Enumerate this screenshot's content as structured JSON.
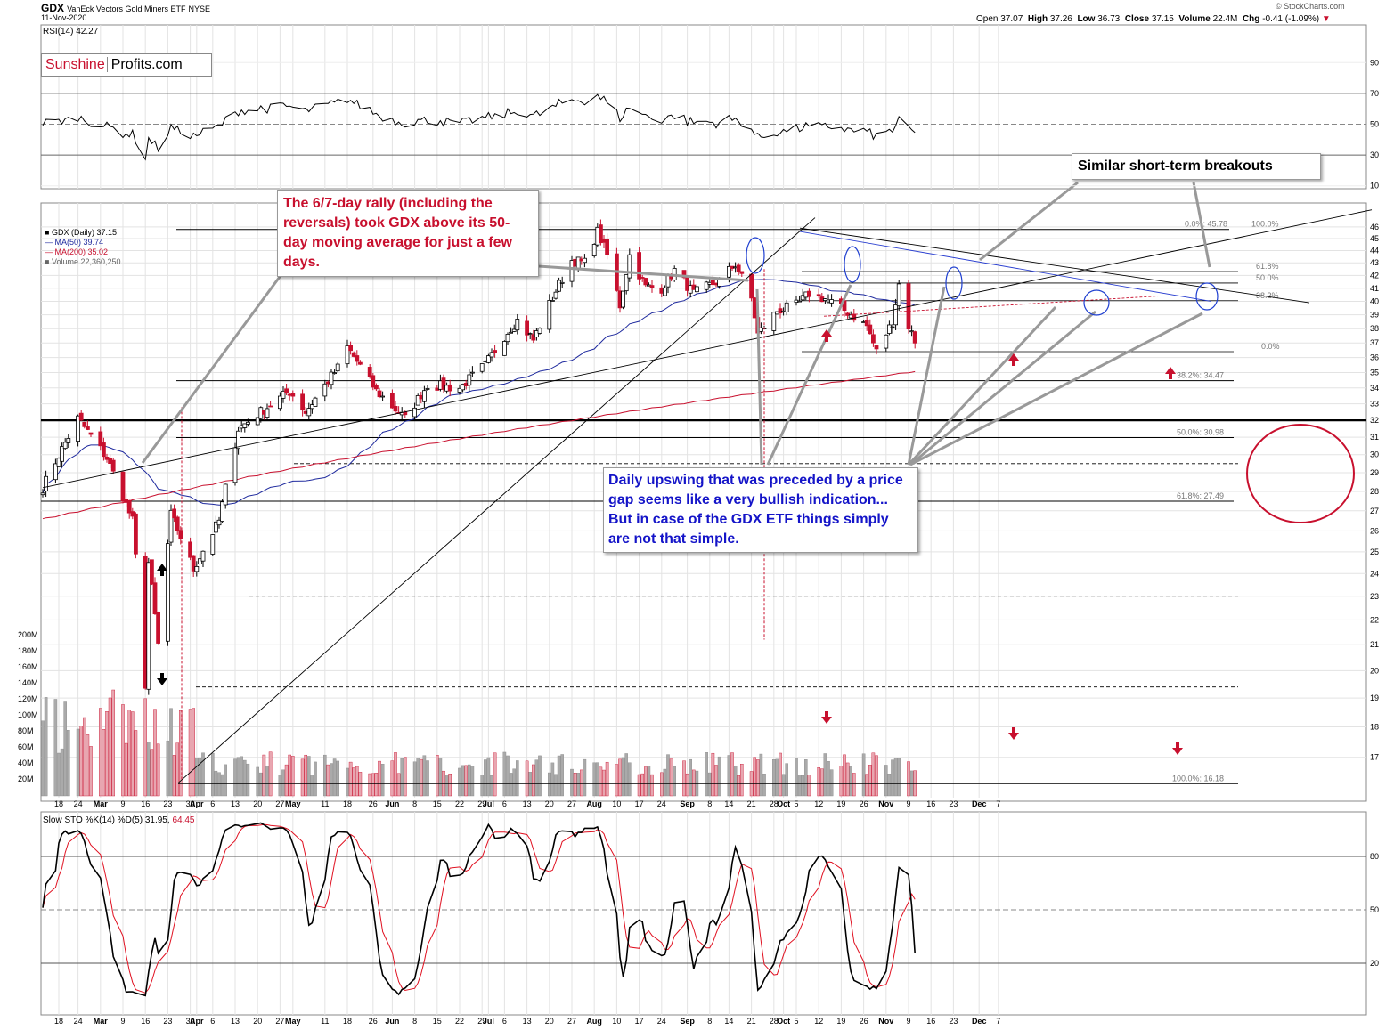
{
  "header": {
    "symbol": "GDX",
    "name": "VanEck Vectors Gold Miners ETF",
    "exchange": "NYSE",
    "date": "11-Nov-2020",
    "watermark": "© StockCharts.com",
    "open_label": "Open",
    "open": "37.07",
    "high_label": "High",
    "high": "37.26",
    "low_label": "Low",
    "low": "36.73",
    "close_label": "Close",
    "close": "37.15",
    "volume_label": "Volume",
    "volume": "22.4M",
    "chg_label": "Chg",
    "chg": "-0.41 (-1.09%)"
  },
  "logo": {
    "part1": "Sunshine",
    "part2": "Profits.com"
  },
  "rsi_legend": "RSI(14) 42.27",
  "price_legend": {
    "gdx": "GDX (Daily) 37.15",
    "ma50": "MA(50) 39.74",
    "ma200": "MA(200) 35.02",
    "volume": "Volume 22,360,250"
  },
  "sto_legend": {
    "label": "Slow STO %K(14) %D(5) 31.95,",
    "d_value": "64.45"
  },
  "annotations": {
    "rally": "The 6/7-day rally (including the reversals) took GDX above its 50-day moving average for just a few days.",
    "breakouts": "Similar short-term breakouts",
    "upswing": "Daily upswing that was preceded by a price gap seems like a very bullish indication... But in case of the GDX ETF things simply are not that simple."
  },
  "colors": {
    "up": "#000000",
    "down": "#c8102e",
    "ma50": "#1f2a9e",
    "ma200": "#c8102e",
    "accent": "#c8102e",
    "note_blue": "#1414c8"
  },
  "icons": [
    "up-arrow-icon",
    "down-arrow-icon",
    "target-circle-icon",
    "breakout-ellipse-icon"
  ],
  "fib_labels": [
    {
      "text": "0.0%: 45.78"
    },
    {
      "text": "100.0%"
    },
    {
      "text": "61.8%"
    },
    {
      "text": "50.0%"
    },
    {
      "text": "38.2%"
    },
    {
      "text": "0.0%"
    },
    {
      "text": "38.2%: 34.47"
    },
    {
      "text": "50.0%: 30.98"
    },
    {
      "text": "61.8%: 27.49"
    },
    {
      "text": "100.0%: 16.18"
    }
  ],
  "chart_data": {
    "type": "candlestick",
    "x_ticks": [
      "18",
      "24",
      "Mar",
      "9",
      "16",
      "23",
      "30",
      "Apr",
      "6",
      "13",
      "20",
      "27",
      "May",
      "11",
      "18",
      "26",
      "Jun",
      "8",
      "15",
      "22",
      "29",
      "Jul",
      "6",
      "13",
      "20",
      "27",
      "Aug",
      "10",
      "17",
      "24",
      "Sep",
      "8",
      "14",
      "21",
      "28",
      "Oct",
      "5",
      "12",
      "19",
      "26",
      "Nov",
      "9",
      "16",
      "23",
      "Dec",
      "7"
    ],
    "price_axis": [
      "46",
      "45",
      "44",
      "43",
      "42",
      "41",
      "40",
      "39",
      "38",
      "37",
      "36",
      "35",
      "34",
      "33",
      "32",
      "31",
      "30",
      "29",
      "28",
      "27",
      "26",
      "25",
      "24",
      "23",
      "22",
      "21",
      "20",
      "19",
      "18",
      "17"
    ],
    "price_range": [
      16,
      47
    ],
    "price_scale": "log",
    "volume_axis": [
      "200M",
      "180M",
      "160M",
      "140M",
      "120M",
      "100M",
      "80M",
      "60M",
      "40M",
      "20M"
    ],
    "rsi_axis": [
      "90",
      "70",
      "50",
      "30",
      "10"
    ],
    "sto_axis": [
      "80",
      "50",
      "20"
    ],
    "key_levels": {
      "fib_high": 45.78,
      "fib_low": 16.18,
      "fib_382": 34.47,
      "fib_500": 30.98,
      "fib_618": 27.49,
      "support_32": 32.0
    },
    "anchors": [
      {
        "date": "Feb 13",
        "price": 28.2
      },
      {
        "date": "Feb 24",
        "price": 32.1
      },
      {
        "date": "Mar 4",
        "price": 29.8
      },
      {
        "date": "Mar 12",
        "price": 26.5
      },
      {
        "date": "Mar 16",
        "price": 19.5
      },
      {
        "date": "Mar 17",
        "price": 24.5
      },
      {
        "date": "Mar 20",
        "price": 21.0
      },
      {
        "date": "Mar 24",
        "price": 26.8
      },
      {
        "date": "Mar 31",
        "price": 24.2
      },
      {
        "date": "Apr 8",
        "price": 26.5
      },
      {
        "date": "Apr 14",
        "price": 31.5
      },
      {
        "date": "Apr 23",
        "price": 32.8
      },
      {
        "date": "Apr 30",
        "price": 33.8
      },
      {
        "date": "May 5",
        "price": 32.5
      },
      {
        "date": "May 15",
        "price": 35.3
      },
      {
        "date": "May 18",
        "price": 36.7
      },
      {
        "date": "May 27",
        "price": 33.8
      },
      {
        "date": "Jun 5",
        "price": 32.1
      },
      {
        "date": "Jun 12",
        "price": 34.2
      },
      {
        "date": "Jun 22",
        "price": 34.0
      },
      {
        "date": "Jun 30",
        "price": 35.5
      },
      {
        "date": "Jul 7",
        "price": 37.8
      },
      {
        "date": "Jul 10",
        "price": 38.6
      },
      {
        "date": "Jul 15",
        "price": 37.2
      },
      {
        "date": "Jul 22",
        "price": 40.8
      },
      {
        "date": "Jul 27",
        "price": 43.2
      },
      {
        "date": "Jul 31",
        "price": 43.0
      },
      {
        "date": "Aug 4",
        "price": 45.6
      },
      {
        "date": "Aug 7",
        "price": 43.6
      },
      {
        "date": "Aug 11",
        "price": 39.7
      },
      {
        "date": "Aug 14",
        "price": 43.6
      },
      {
        "date": "Aug 19",
        "price": 41.1
      },
      {
        "date": "Aug 24",
        "price": 41.0
      },
      {
        "date": "Aug 28",
        "price": 42.4
      },
      {
        "date": "Sep 3",
        "price": 40.6
      },
      {
        "date": "Sep 11",
        "price": 41.6
      },
      {
        "date": "Sep 16",
        "price": 42.9
      },
      {
        "date": "Sep 21",
        "price": 40.2
      },
      {
        "date": "Sep 23",
        "price": 37.6
      },
      {
        "date": "Sep 29",
        "price": 39.3
      },
      {
        "date": "Oct 5",
        "price": 39.7
      },
      {
        "date": "Oct 9",
        "price": 40.6
      },
      {
        "date": "Oct 14",
        "price": 40.2
      },
      {
        "date": "Oct 21",
        "price": 39.2
      },
      {
        "date": "Oct 27",
        "price": 38.2
      },
      {
        "date": "Oct 30",
        "price": 36.4
      },
      {
        "date": "Nov 4",
        "price": 38.5
      },
      {
        "date": "Nov 6",
        "price": 41.3
      },
      {
        "date": "Nov 9",
        "price": 38.2
      },
      {
        "date": "Nov 11",
        "price": 37.15
      }
    ]
  }
}
